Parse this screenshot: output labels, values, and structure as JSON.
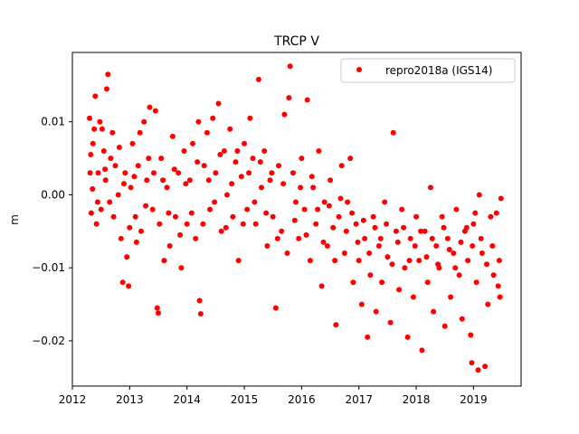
{
  "chart_data": {
    "type": "scatter",
    "title": "TRCP V",
    "xlabel": "",
    "ylabel": "m",
    "xlim": [
      2012.0,
      2019.83
    ],
    "ylim": [
      -0.0262,
      0.0195
    ],
    "x_ticks": [
      2012,
      2013,
      2014,
      2015,
      2016,
      2017,
      2018,
      2019
    ],
    "x_tick_labels": [
      "2012",
      "2013",
      "2014",
      "2015",
      "2016",
      "2017",
      "2018",
      "2019"
    ],
    "y_ticks": [
      -0.02,
      -0.01,
      0.0,
      0.01
    ],
    "y_tick_labels": [
      "−0.02",
      "−0.01",
      "0.00",
      "0.01"
    ],
    "grid": false,
    "legend_position": "top-right",
    "series": [
      {
        "name": "repro2018a (IGS14)",
        "color": "#ff0000",
        "marker": "circle",
        "points": [
          [
            2012.3,
            0.0105
          ],
          [
            2012.32,
            0.0055
          ],
          [
            2012.33,
            -0.0025
          ],
          [
            2012.35,
            0.0008
          ],
          [
            2012.38,
            0.009
          ],
          [
            2012.4,
            0.0135
          ],
          [
            2012.42,
            -0.004
          ],
          [
            2012.45,
            0.003
          ],
          [
            2012.48,
            0.01
          ],
          [
            2012.5,
            -0.002
          ],
          [
            2012.55,
            0.006
          ],
          [
            2012.58,
            0.002
          ],
          [
            2012.6,
            0.0145
          ],
          [
            2012.62,
            0.0165
          ],
          [
            2012.65,
            -0.001
          ],
          [
            2012.7,
            0.0085
          ],
          [
            2012.75,
            0.004
          ],
          [
            2012.8,
            0.0
          ],
          [
            2012.85,
            -0.006
          ],
          [
            2012.88,
            -0.012
          ],
          [
            2012.92,
            0.003
          ],
          [
            2012.95,
            -0.0085
          ],
          [
            2012.98,
            -0.0125
          ],
          [
            2013.02,
            0.001
          ],
          [
            2013.05,
            0.007
          ],
          [
            2013.1,
            -0.003
          ],
          [
            2013.15,
            0.004
          ],
          [
            2013.2,
            -0.005
          ],
          [
            2013.25,
            0.01
          ],
          [
            2013.3,
            0.002
          ],
          [
            2013.35,
            0.012
          ],
          [
            2013.4,
            -0.002
          ],
          [
            2013.45,
            0.0115
          ],
          [
            2013.48,
            -0.0155
          ],
          [
            2013.5,
            -0.0162
          ],
          [
            2013.55,
            0.005
          ],
          [
            2013.6,
            -0.009
          ],
          [
            2013.65,
            0.001
          ],
          [
            2013.7,
            -0.007
          ],
          [
            2013.75,
            0.008
          ],
          [
            2013.8,
            -0.003
          ],
          [
            2013.85,
            0.003
          ],
          [
            2013.9,
            -0.01
          ],
          [
            2013.95,
            0.006
          ],
          [
            2014.0,
            -0.004
          ],
          [
            2014.05,
            0.002
          ],
          [
            2014.1,
            0.007
          ],
          [
            2014.15,
            -0.006
          ],
          [
            2014.2,
            0.01
          ],
          [
            2014.22,
            -0.0145
          ],
          [
            2014.24,
            -0.0163
          ],
          [
            2014.3,
            0.004
          ],
          [
            2014.35,
            0.0085
          ],
          [
            2014.4,
            -0.002
          ],
          [
            2014.45,
            0.0105
          ],
          [
            2014.5,
            0.003
          ],
          [
            2014.55,
            0.0125
          ],
          [
            2014.6,
            -0.005
          ],
          [
            2014.65,
            0.006
          ],
          [
            2014.7,
            0.0
          ],
          [
            2014.75,
            0.009
          ],
          [
            2014.8,
            -0.003
          ],
          [
            2014.85,
            0.0045
          ],
          [
            2014.9,
            -0.009
          ],
          [
            2014.95,
            0.0025
          ],
          [
            2015.0,
            0.007
          ],
          [
            2015.05,
            -0.002
          ],
          [
            2015.1,
            0.0105
          ],
          [
            2015.15,
            0.005
          ],
          [
            2015.2,
            -0.004
          ],
          [
            2015.25,
            0.0158
          ],
          [
            2015.3,
            0.001
          ],
          [
            2015.35,
            0.006
          ],
          [
            2015.4,
            -0.007
          ],
          [
            2015.45,
            0.002
          ],
          [
            2015.5,
            -0.003
          ],
          [
            2015.55,
            -0.0155
          ],
          [
            2015.6,
            0.004
          ],
          [
            2015.65,
            -0.005
          ],
          [
            2015.7,
            0.011
          ],
          [
            2015.75,
            -0.008
          ],
          [
            2015.78,
            0.0133
          ],
          [
            2015.8,
            0.0176
          ],
          [
            2015.85,
            0.003
          ],
          [
            2015.9,
            -0.001
          ],
          [
            2015.95,
            -0.006
          ],
          [
            2016.0,
            0.005
          ],
          [
            2016.05,
            -0.002
          ],
          [
            2016.1,
            0.013
          ],
          [
            2016.15,
            -0.009
          ],
          [
            2016.2,
            0.001
          ],
          [
            2016.25,
            -0.004
          ],
          [
            2016.3,
            0.006
          ],
          [
            2016.35,
            -0.0125
          ],
          [
            2016.4,
            -0.001
          ],
          [
            2016.45,
            -0.007
          ],
          [
            2016.5,
            0.002
          ],
          [
            2016.55,
            -0.0045
          ],
          [
            2016.6,
            -0.0178
          ],
          [
            2016.65,
            -0.003
          ],
          [
            2016.7,
            0.004
          ],
          [
            2016.75,
            -0.008
          ],
          [
            2016.8,
            -0.001
          ],
          [
            2016.85,
            0.005
          ],
          [
            2016.9,
            -0.012
          ],
          [
            2016.95,
            -0.004
          ],
          [
            2017.0,
            -0.009
          ],
          [
            2017.05,
            -0.015
          ],
          [
            2017.1,
            -0.006
          ],
          [
            2017.15,
            -0.0195
          ],
          [
            2017.2,
            -0.011
          ],
          [
            2017.25,
            -0.003
          ],
          [
            2017.3,
            -0.016
          ],
          [
            2017.35,
            -0.007
          ],
          [
            2017.4,
            -0.012
          ],
          [
            2017.45,
            -0.001
          ],
          [
            2017.5,
            -0.0085
          ],
          [
            2017.55,
            -0.0175
          ],
          [
            2017.6,
            0.0085
          ],
          [
            2017.65,
            -0.005
          ],
          [
            2017.7,
            -0.013
          ],
          [
            2017.75,
            -0.002
          ],
          [
            2017.8,
            -0.01
          ],
          [
            2017.85,
            -0.0195
          ],
          [
            2017.9,
            -0.006
          ],
          [
            2017.95,
            -0.014
          ],
          [
            2018.0,
            -0.003
          ],
          [
            2018.05,
            -0.009
          ],
          [
            2018.1,
            -0.0213
          ],
          [
            2018.15,
            -0.005
          ],
          [
            2018.2,
            -0.012
          ],
          [
            2018.25,
            0.001
          ],
          [
            2018.3,
            -0.016
          ],
          [
            2018.35,
            -0.007
          ],
          [
            2018.4,
            -0.01
          ],
          [
            2018.45,
            -0.003
          ],
          [
            2018.5,
            -0.018
          ],
          [
            2018.55,
            -0.006
          ],
          [
            2018.6,
            -0.014
          ],
          [
            2018.65,
            -0.008
          ],
          [
            2018.7,
            -0.002
          ],
          [
            2018.75,
            -0.011
          ],
          [
            2018.8,
            -0.017
          ],
          [
            2018.85,
            -0.005
          ],
          [
            2018.9,
            -0.009
          ],
          [
            2018.95,
            -0.0192
          ],
          [
            2018.97,
            -0.023
          ],
          [
            2019.0,
            -0.004
          ],
          [
            2019.05,
            -0.012
          ],
          [
            2019.08,
            -0.024
          ],
          [
            2019.1,
            0.0
          ],
          [
            2019.15,
            -0.008
          ],
          [
            2019.2,
            -0.0235
          ],
          [
            2019.25,
            -0.015
          ],
          [
            2019.3,
            -0.003
          ],
          [
            2019.35,
            -0.011
          ],
          [
            2019.4,
            -0.0025
          ],
          [
            2019.45,
            -0.009
          ],
          [
            2019.48,
            -0.0005
          ],
          [
            2012.31,
            0.003
          ],
          [
            2012.36,
            0.007
          ],
          [
            2012.44,
            -0.001
          ],
          [
            2012.52,
            0.009
          ],
          [
            2012.57,
            0.0035
          ],
          [
            2012.67,
            0.005
          ],
          [
            2012.72,
            -0.003
          ],
          [
            2012.82,
            0.0065
          ],
          [
            2012.9,
            0.0015
          ],
          [
            2013.0,
            -0.0045
          ],
          [
            2013.08,
            0.0025
          ],
          [
            2013.12,
            -0.0065
          ],
          [
            2013.18,
            0.0085
          ],
          [
            2013.28,
            -0.0015
          ],
          [
            2013.33,
            0.005
          ],
          [
            2013.42,
            0.003
          ],
          [
            2013.52,
            -0.004
          ],
          [
            2013.58,
            0.002
          ],
          [
            2013.68,
            -0.0025
          ],
          [
            2013.78,
            0.0035
          ],
          [
            2013.88,
            -0.0055
          ],
          [
            2013.98,
            0.0015
          ],
          [
            2014.08,
            -0.0025
          ],
          [
            2014.18,
            0.0045
          ],
          [
            2014.28,
            -0.004
          ],
          [
            2014.38,
            0.002
          ],
          [
            2014.48,
            -0.001
          ],
          [
            2014.58,
            0.0055
          ],
          [
            2014.68,
            -0.0045
          ],
          [
            2014.78,
            0.0015
          ],
          [
            2014.88,
            0.006
          ],
          [
            2014.98,
            -0.004
          ],
          [
            2015.08,
            0.003
          ],
          [
            2015.18,
            -0.001
          ],
          [
            2015.28,
            0.0045
          ],
          [
            2015.38,
            -0.0025
          ],
          [
            2015.48,
            0.003
          ],
          [
            2015.58,
            -0.006
          ],
          [
            2015.68,
            0.0015
          ],
          [
            2015.88,
            -0.0035
          ],
          [
            2015.98,
            0.001
          ],
          [
            2016.08,
            -0.0055
          ],
          [
            2016.18,
            0.0025
          ],
          [
            2016.28,
            -0.002
          ],
          [
            2016.38,
            -0.0065
          ],
          [
            2016.48,
            -0.0015
          ],
          [
            2016.58,
            -0.009
          ],
          [
            2016.68,
            -0.0005
          ],
          [
            2016.78,
            -0.005
          ],
          [
            2016.88,
            -0.0025
          ],
          [
            2016.98,
            -0.0065
          ],
          [
            2017.08,
            -0.0035
          ],
          [
            2017.18,
            -0.008
          ],
          [
            2017.28,
            -0.0045
          ],
          [
            2017.38,
            -0.006
          ],
          [
            2017.48,
            -0.004
          ],
          [
            2017.58,
            -0.0095
          ],
          [
            2017.68,
            -0.0065
          ],
          [
            2017.78,
            -0.0045
          ],
          [
            2017.88,
            -0.009
          ],
          [
            2017.98,
            -0.007
          ],
          [
            2018.08,
            -0.005
          ],
          [
            2018.18,
            -0.0085
          ],
          [
            2018.28,
            -0.006
          ],
          [
            2018.38,
            -0.0095
          ],
          [
            2018.48,
            -0.0045
          ],
          [
            2018.58,
            -0.0075
          ],
          [
            2018.68,
            -0.01
          ],
          [
            2018.78,
            -0.0065
          ],
          [
            2018.88,
            -0.0045
          ],
          [
            2018.98,
            -0.007
          ],
          [
            2019.03,
            -0.0025
          ],
          [
            2019.13,
            -0.006
          ],
          [
            2019.23,
            -0.0095
          ],
          [
            2019.33,
            -0.007
          ],
          [
            2019.43,
            -0.0125
          ],
          [
            2019.46,
            -0.014
          ]
        ]
      }
    ]
  }
}
